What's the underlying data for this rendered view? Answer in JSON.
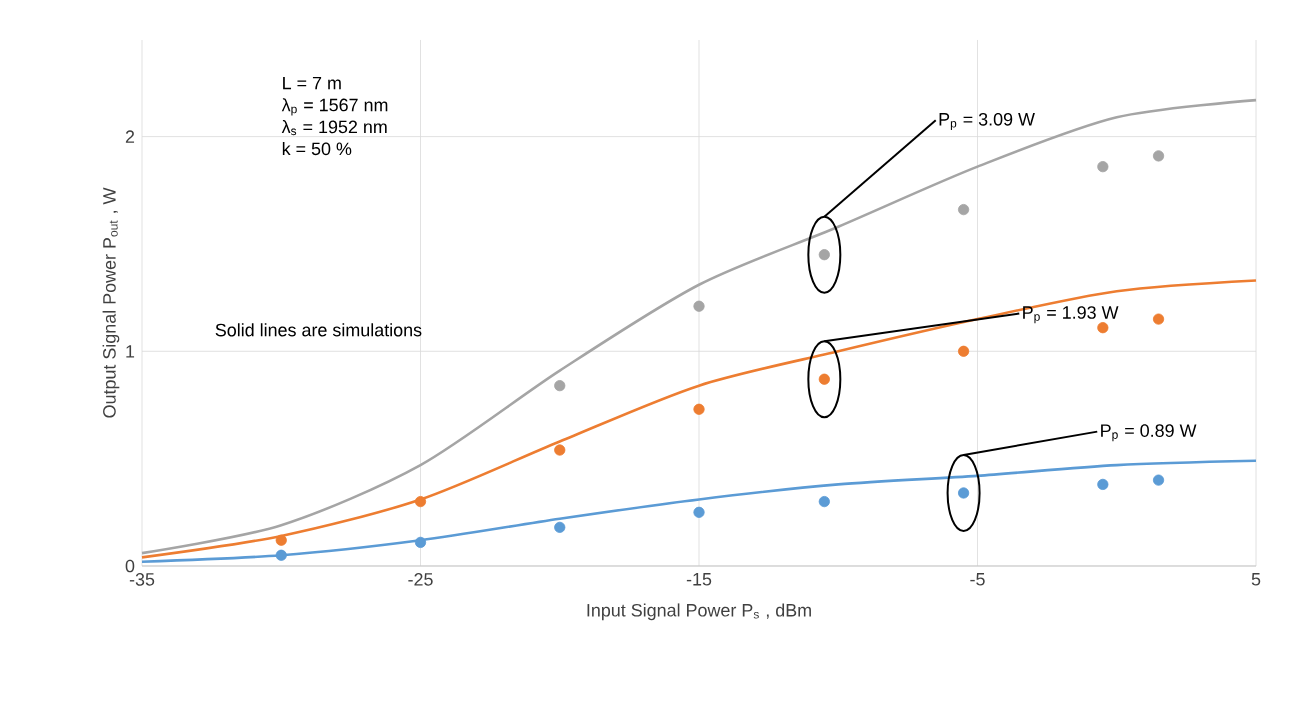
{
  "chart_data": {
    "type": "scatter",
    "xlabel": "Input Signal Power P$_{s}$ , dBm",
    "ylabel": "Output Signal Power P$_{out}$ , W",
    "xlim": [
      -35,
      5
    ],
    "xticks": [
      -35,
      -25,
      -15,
      -5,
      5
    ],
    "ylim": [
      0,
      2.45
    ],
    "yticks": [
      0,
      1,
      2
    ],
    "grid": true,
    "marker": "circle",
    "series": [
      {
        "color": "#a5a5a5",
        "x": [
          -20,
          -15,
          -10.5,
          -5.5,
          -0.5,
          1.5
        ],
        "values": [
          0.84,
          1.21,
          1.45,
          1.66,
          1.86,
          1.91
        ]
      },
      {
        "color": "#ed7d31",
        "x": [
          -30,
          -25,
          -20,
          -15,
          -10.5,
          -5.5,
          -0.5,
          1.5
        ],
        "values": [
          0.12,
          0.3,
          0.54,
          0.73,
          0.87,
          1.0,
          1.11,
          1.15
        ]
      },
      {
        "color": "#5b9bd5",
        "x": [
          -30,
          -25,
          -20,
          -15,
          -10.5,
          -5.5,
          -0.5,
          1.5
        ],
        "values": [
          0.05,
          0.11,
          0.18,
          0.25,
          0.3,
          0.34,
          0.38,
          0.4
        ]
      },
      {
        "type": "line",
        "color": "#a5a5a5",
        "marker": "none",
        "x": [
          -35,
          -30,
          -25,
          -20,
          -15,
          -10,
          -5,
          0,
          5
        ],
        "values": [
          0.06,
          0.19,
          0.47,
          0.91,
          1.31,
          1.58,
          1.86,
          2.09,
          2.17
        ]
      },
      {
        "type": "line",
        "color": "#ed7d31",
        "marker": "none",
        "x": [
          -35,
          -30,
          -25,
          -20,
          -15,
          -10,
          -5,
          0,
          5
        ],
        "values": [
          0.04,
          0.14,
          0.31,
          0.58,
          0.84,
          1.0,
          1.15,
          1.28,
          1.33
        ]
      },
      {
        "type": "line",
        "color": "#5b9bd5",
        "marker": "none",
        "x": [
          -35,
          -30,
          -25,
          -20,
          -15,
          -10,
          -5,
          0,
          5
        ],
        "values": [
          0.02,
          0.05,
          0.12,
          0.22,
          0.31,
          0.38,
          0.42,
          0.47,
          0.49
        ]
      }
    ],
    "annotations": [
      "P$_{p}$ = 3.09 W",
      "P$_{p}$ = 1.93 W",
      "P$_{p}$ = 0.89 W",
      "L = 7 m",
      "λ$_{p}$ = 1567 nm",
      "λ$_{s}$ = 1952  nm",
      "k = 50 %",
      "Solid lines are simulations"
    ]
  }
}
